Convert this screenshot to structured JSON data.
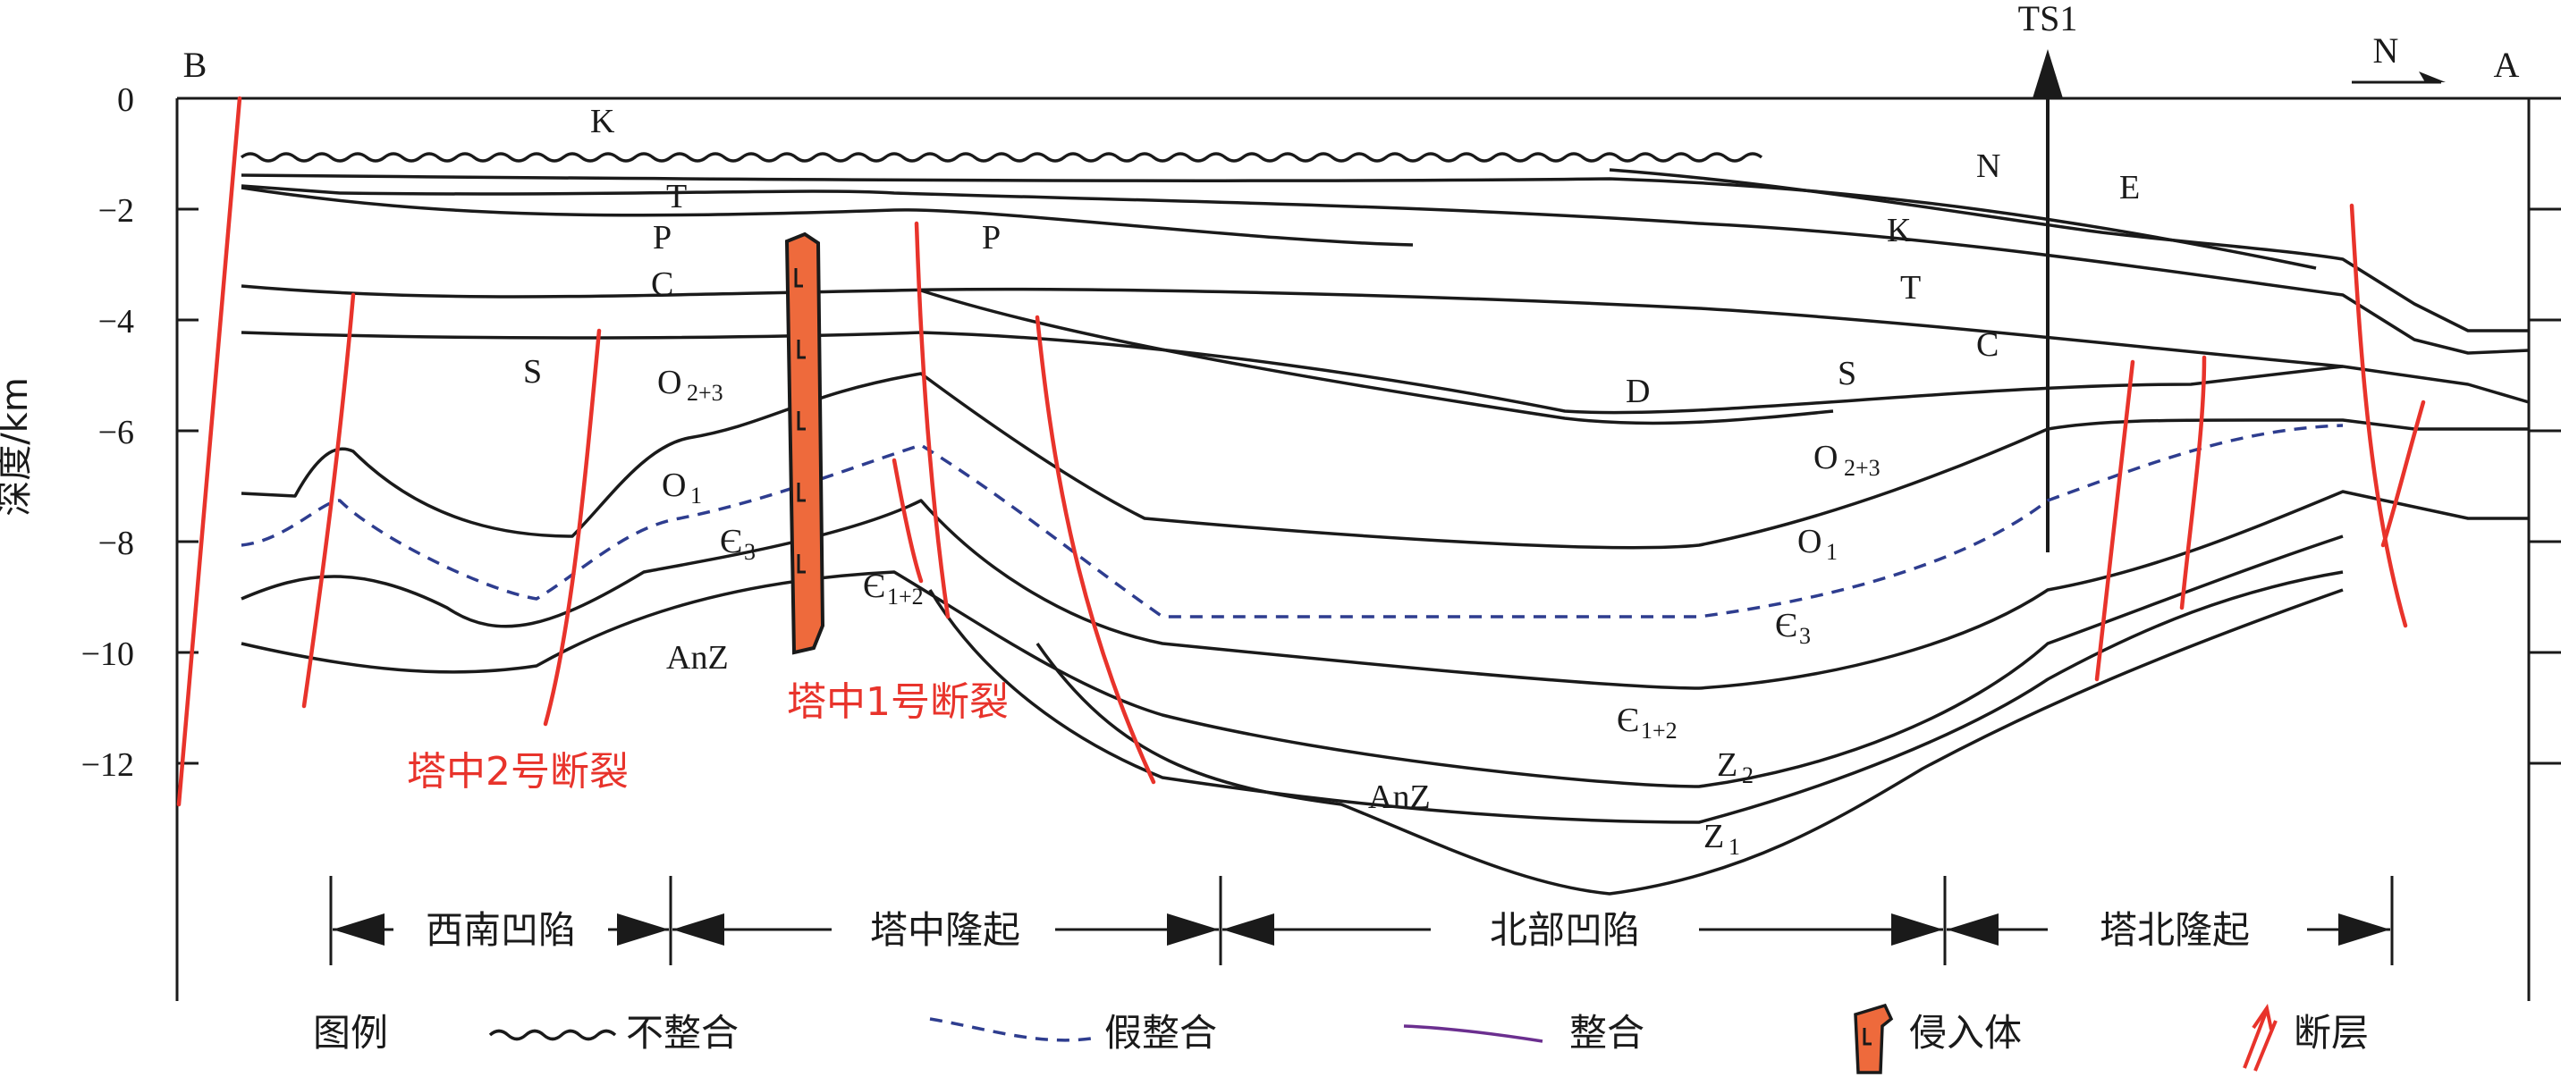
{
  "endpoints": {
    "left": "B",
    "right": "A"
  },
  "well": "TS1",
  "north": "N",
  "yaxis": {
    "label": "深度/km",
    "ticks": [
      "0",
      "−2",
      "−4",
      "−6",
      "−8",
      "−10",
      "−12"
    ]
  },
  "faults": {
    "tz1": "塔中1号断裂",
    "tz2": "塔中2号断裂"
  },
  "layers": {
    "K1": "K",
    "T1": "T",
    "P1": "P",
    "C1": "C",
    "S1": "S",
    "O23a": "O",
    "O23a_sub": "2+3",
    "O1a": "O",
    "O1a_sub": "1",
    "E3a": "Є",
    "E3a_sub": "3",
    "AnZ1": "AnZ",
    "E12a": "Є",
    "E12a_sub": "1+2",
    "P2": "P",
    "N": "N",
    "E": "E",
    "K2": "K",
    "T2": "T",
    "C2": "C",
    "D": "D",
    "S2": "S",
    "O23b": "O",
    "O23b_sub": "2+3",
    "O1b": "O",
    "O1b_sub": "1",
    "E3b": "Є",
    "E3b_sub": "3",
    "E12b": "Є",
    "E12b_sub": "1+2",
    "Z2": "Z",
    "Z2_sub": "2",
    "Z1": "Z",
    "Z1_sub": "1",
    "AnZ2": "AnZ"
  },
  "regions": [
    "西南凹陷",
    "塔中隆起",
    "北部凹陷",
    "塔北隆起"
  ],
  "legend": {
    "title": "图例",
    "items": [
      "不整合",
      "假整合",
      "整合",
      "侵入体",
      "断层"
    ]
  },
  "colors": {
    "line": "#1a1a1a",
    "disconformity": "#2e3d8f",
    "conformity": "#6b2f8f",
    "fault": "#e8332b",
    "intrusion": "#ee6a3c"
  }
}
